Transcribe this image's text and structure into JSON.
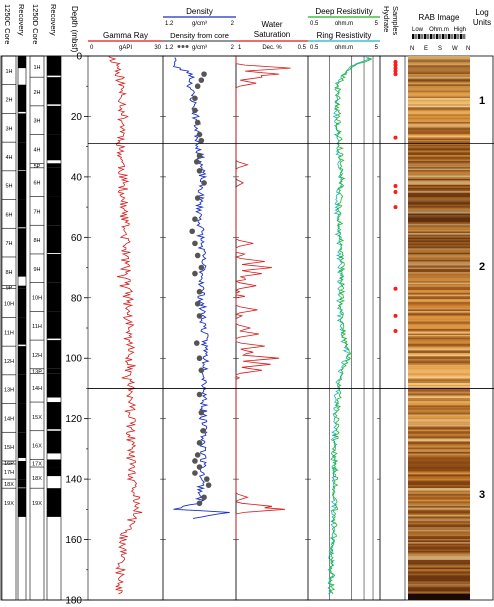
{
  "chart_data": {
    "type": "line",
    "title": "",
    "depth_axis": {
      "label": "Depth (mbsf)",
      "range": [
        0,
        180
      ],
      "ticks": [
        0,
        20,
        40,
        60,
        80,
        100,
        120,
        140,
        160,
        180
      ]
    },
    "core_columns": [
      {
        "label": "1250C Core",
        "recovery_label": "Recovery",
        "cores": [
          {
            "name": "1H",
            "top": 0,
            "bottom": 9.5,
            "recovered": 4.0
          },
          {
            "name": "2H",
            "top": 9.5,
            "bottom": 19,
            "recovered": 9.0
          },
          {
            "name": "3H",
            "top": 19,
            "bottom": 28.5,
            "recovered": 9.5
          },
          {
            "name": "4H",
            "top": 28.5,
            "bottom": 38,
            "recovered": 9.3
          },
          {
            "name": "5H",
            "top": 38,
            "bottom": 47.5,
            "recovered": 9.5
          },
          {
            "name": "6H",
            "top": 47.5,
            "bottom": 57,
            "recovered": 9.2
          },
          {
            "name": "7H",
            "top": 57,
            "bottom": 66.5,
            "recovered": 9.5
          },
          {
            "name": "8H",
            "top": 66.5,
            "bottom": 76,
            "recovered": 6.5
          },
          {
            "name": "9P",
            "top": 76,
            "bottom": 77,
            "recovered": 1.0
          },
          {
            "name": "10H",
            "top": 77,
            "bottom": 86.5,
            "recovered": 9.5
          },
          {
            "name": "11H",
            "top": 86.5,
            "bottom": 96,
            "recovered": 9.0
          },
          {
            "name": "12H",
            "top": 96,
            "bottom": 105.5,
            "recovered": 9.5
          },
          {
            "name": "13H",
            "top": 105.5,
            "bottom": 115,
            "recovered": 9.5
          },
          {
            "name": "14H",
            "top": 115,
            "bottom": 124.5,
            "recovered": 9.5
          },
          {
            "name": "15H",
            "top": 124.5,
            "bottom": 134,
            "recovered": 8.5
          },
          {
            "name": "16P",
            "top": 134,
            "bottom": 135,
            "recovered": 1.0
          },
          {
            "name": "17H",
            "top": 135,
            "bottom": 140,
            "recovered": 5.0
          },
          {
            "name": "18X",
            "top": 140,
            "bottom": 143,
            "recovered": 2.8
          },
          {
            "name": "19X",
            "top": 143,
            "bottom": 152.5,
            "recovered": 9.5
          }
        ]
      },
      {
        "label": "1250D Core",
        "recovery_label": "Recovery",
        "cores": [
          {
            "name": "1H",
            "top": 0,
            "bottom": 7,
            "recovered": 6.5
          },
          {
            "name": "2H",
            "top": 7,
            "bottom": 16.5,
            "recovered": 9.0
          },
          {
            "name": "3H",
            "top": 16.5,
            "bottom": 26,
            "recovered": 9.5
          },
          {
            "name": "4H",
            "top": 26,
            "bottom": 35.5,
            "recovered": 8.5
          },
          {
            "name": "5P",
            "top": 35.5,
            "bottom": 37,
            "recovered": 1.5
          },
          {
            "name": "6H",
            "top": 37,
            "bottom": 46.5,
            "recovered": 9.5
          },
          {
            "name": "7H",
            "top": 46.5,
            "bottom": 56,
            "recovered": 9.5
          },
          {
            "name": "8H",
            "top": 56,
            "bottom": 65.5,
            "recovered": 9.2
          },
          {
            "name": "9H",
            "top": 65.5,
            "bottom": 75,
            "recovered": 9.5
          },
          {
            "name": "10H",
            "top": 75,
            "bottom": 84.5,
            "recovered": 9.5
          },
          {
            "name": "11H",
            "top": 84.5,
            "bottom": 94,
            "recovered": 9.0
          },
          {
            "name": "12H",
            "top": 94,
            "bottom": 103.5,
            "recovered": 9.5
          },
          {
            "name": "13P",
            "top": 103.5,
            "bottom": 105,
            "recovered": 1.5
          },
          {
            "name": "14H",
            "top": 105,
            "bottom": 114.5,
            "recovered": 8.0
          },
          {
            "name": "15X",
            "top": 114.5,
            "bottom": 124,
            "recovered": 9.0
          },
          {
            "name": "16X",
            "top": 124,
            "bottom": 133.5,
            "recovered": 7.5
          },
          {
            "name": "17X",
            "top": 133.5,
            "bottom": 136,
            "recovered": 2.5
          },
          {
            "name": "18X",
            "top": 136,
            "bottom": 143,
            "recovered": 3.0
          },
          {
            "name": "19X",
            "top": 143,
            "bottom": 152.5,
            "recovered": 9.5
          }
        ]
      }
    ],
    "tracks": [
      {
        "id": "gamma",
        "title": "Gamma Ray",
        "unit": "gAPI",
        "range": [
          0,
          30
        ],
        "color": "#d81b1b",
        "profile": [
          [
            0,
            9
          ],
          [
            3,
            12
          ],
          [
            8,
            13
          ],
          [
            15,
            14
          ],
          [
            25,
            14
          ],
          [
            30,
            13
          ],
          [
            40,
            14
          ],
          [
            50,
            14
          ],
          [
            60,
            15
          ],
          [
            70,
            15
          ],
          [
            80,
            16
          ],
          [
            90,
            16
          ],
          [
            100,
            17
          ],
          [
            110,
            17
          ],
          [
            120,
            17
          ],
          [
            130,
            17
          ],
          [
            140,
            17
          ],
          [
            145,
            19
          ],
          [
            148,
            20
          ],
          [
            150,
            19
          ],
          [
            160,
            14
          ],
          [
            170,
            13
          ],
          [
            178,
            12
          ]
        ],
        "noise": 2.0
      },
      {
        "id": "density",
        "title": "Density",
        "unit": "g/cm³",
        "range": [
          1.2,
          2
        ],
        "color": "#1a2fc8",
        "second_label": "Density from core",
        "second_color": "#555555",
        "profile": [
          [
            1,
            1.35
          ],
          [
            3,
            1.3
          ],
          [
            6,
            1.52
          ],
          [
            10,
            1.5
          ],
          [
            18,
            1.55
          ],
          [
            25,
            1.58
          ],
          [
            32,
            1.6
          ],
          [
            40,
            1.63
          ],
          [
            50,
            1.6
          ],
          [
            60,
            1.62
          ],
          [
            70,
            1.64
          ],
          [
            80,
            1.62
          ],
          [
            90,
            1.65
          ],
          [
            100,
            1.67
          ],
          [
            110,
            1.66
          ],
          [
            120,
            1.64
          ],
          [
            130,
            1.65
          ],
          [
            140,
            1.63
          ],
          [
            148,
            1.6
          ],
          [
            150,
            1.3
          ],
          [
            151,
            1.95
          ],
          [
            152,
            1.68
          ],
          [
            153,
            1.55
          ]
        ],
        "noise": 0.04,
        "core_density_points": [
          [
            6,
            1.65
          ],
          [
            8,
            1.62
          ],
          [
            10,
            1.58
          ],
          [
            14,
            1.55
          ],
          [
            18,
            1.55
          ],
          [
            22,
            1.58
          ],
          [
            26,
            1.6
          ],
          [
            28,
            1.62
          ],
          [
            33,
            1.6
          ],
          [
            35,
            1.57
          ],
          [
            38,
            1.6
          ],
          [
            42,
            1.65
          ],
          [
            47,
            1.58
          ],
          [
            54,
            1.55
          ],
          [
            58,
            1.52
          ],
          [
            62,
            1.55
          ],
          [
            66,
            1.58
          ],
          [
            70,
            1.62
          ],
          [
            72,
            1.55
          ],
          [
            78,
            1.6
          ],
          [
            82,
            1.58
          ],
          [
            86,
            1.6
          ],
          [
            95,
            1.57
          ],
          [
            100,
            1.6
          ],
          [
            104,
            1.62
          ],
          [
            112,
            1.6
          ],
          [
            118,
            1.62
          ],
          [
            124,
            1.64
          ],
          [
            128,
            1.6
          ],
          [
            132,
            1.58
          ],
          [
            134,
            1.55
          ],
          [
            136,
            1.6
          ],
          [
            138,
            1.55
          ],
          [
            140,
            1.68
          ],
          [
            142,
            1.7
          ],
          [
            146,
            1.65
          ],
          [
            148,
            1.6
          ]
        ]
      },
      {
        "id": "sw",
        "title": "Water Saturation",
        "unit": "Dec. %",
        "range": [
          1,
          0.5
        ],
        "color": "#d81b1b",
        "spikes": [
          [
            4,
            0.62
          ],
          [
            6,
            0.7
          ],
          [
            7,
            0.82
          ],
          [
            9,
            0.86
          ],
          [
            36,
            0.92
          ],
          [
            42,
            0.95
          ],
          [
            62,
            0.88
          ],
          [
            68,
            0.8
          ],
          [
            70,
            0.75
          ],
          [
            72,
            0.82
          ],
          [
            76,
            0.86
          ],
          [
            84,
            0.85
          ],
          [
            90,
            0.9
          ],
          [
            92,
            0.84
          ],
          [
            96,
            0.8
          ],
          [
            98,
            0.88
          ],
          [
            100,
            0.7
          ],
          [
            102,
            0.76
          ],
          [
            104,
            0.82
          ],
          [
            146,
            0.92
          ],
          [
            149,
            0.75
          ],
          [
            150,
            0.66
          ]
        ]
      },
      {
        "id": "resist",
        "title": "Deep Resistivity",
        "second_label": "Ring Resistivity",
        "unit": "ohm.m",
        "range": [
          0.5,
          5
        ],
        "log_scale": true,
        "color": "#1fb51f",
        "second_color": "#17b3c6",
        "profile": [
          [
            1,
            3.5
          ],
          [
            3,
            2.2
          ],
          [
            6,
            1.6
          ],
          [
            10,
            1.3
          ],
          [
            20,
            1.3
          ],
          [
            30,
            1.4
          ],
          [
            40,
            1.5
          ],
          [
            50,
            1.35
          ],
          [
            60,
            1.4
          ],
          [
            70,
            1.5
          ],
          [
            80,
            1.45
          ],
          [
            90,
            1.5
          ],
          [
            100,
            1.9
          ],
          [
            102,
            1.6
          ],
          [
            110,
            1.35
          ],
          [
            130,
            1.2
          ],
          [
            150,
            1.2
          ],
          [
            170,
            1.1
          ],
          [
            178,
            1.05
          ]
        ]
      },
      {
        "id": "hydrate",
        "title": "Hydrate Samples",
        "color": "#ff1a1a",
        "points": [
          2,
          3,
          4,
          5,
          6,
          27,
          43,
          45,
          50,
          77,
          86,
          91
        ]
      },
      {
        "id": "rab",
        "title": "RAB Image",
        "scale_low": "Low",
        "scale_mid": "Ohm.m",
        "scale_high": "High",
        "azimuth_labels": [
          "N",
          "E",
          "S",
          "W",
          "N"
        ]
      }
    ],
    "log_units": {
      "title": "Log Units",
      "boundaries": [
        29,
        110
      ],
      "units": [
        {
          "name": "1",
          "top": 0,
          "bottom": 29
        },
        {
          "name": "2",
          "top": 29,
          "bottom": 110
        },
        {
          "name": "3",
          "top": 110,
          "bottom": 180
        }
      ]
    },
    "grid": true,
    "legend": "track headers"
  }
}
